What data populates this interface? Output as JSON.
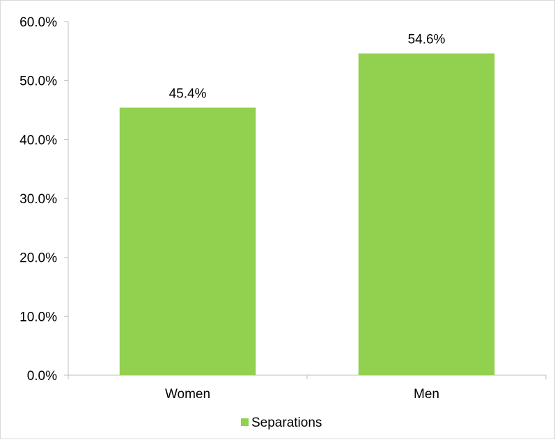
{
  "chart_data": {
    "type": "bar",
    "categories": [
      "Women",
      "Men"
    ],
    "series": [
      {
        "name": "Separations",
        "values": [
          45.4,
          54.6
        ],
        "color": "#92d050"
      }
    ],
    "data_labels": [
      "45.4%",
      "54.6%"
    ],
    "y_ticks": [
      "0.0%",
      "10.0%",
      "20.0%",
      "30.0%",
      "40.0%",
      "50.0%",
      "60.0%"
    ],
    "ylim": [
      0,
      60
    ],
    "y_tick_step": 10,
    "grid": false,
    "legend_position": "bottom",
    "title": "",
    "xlabel": "",
    "ylabel": ""
  }
}
